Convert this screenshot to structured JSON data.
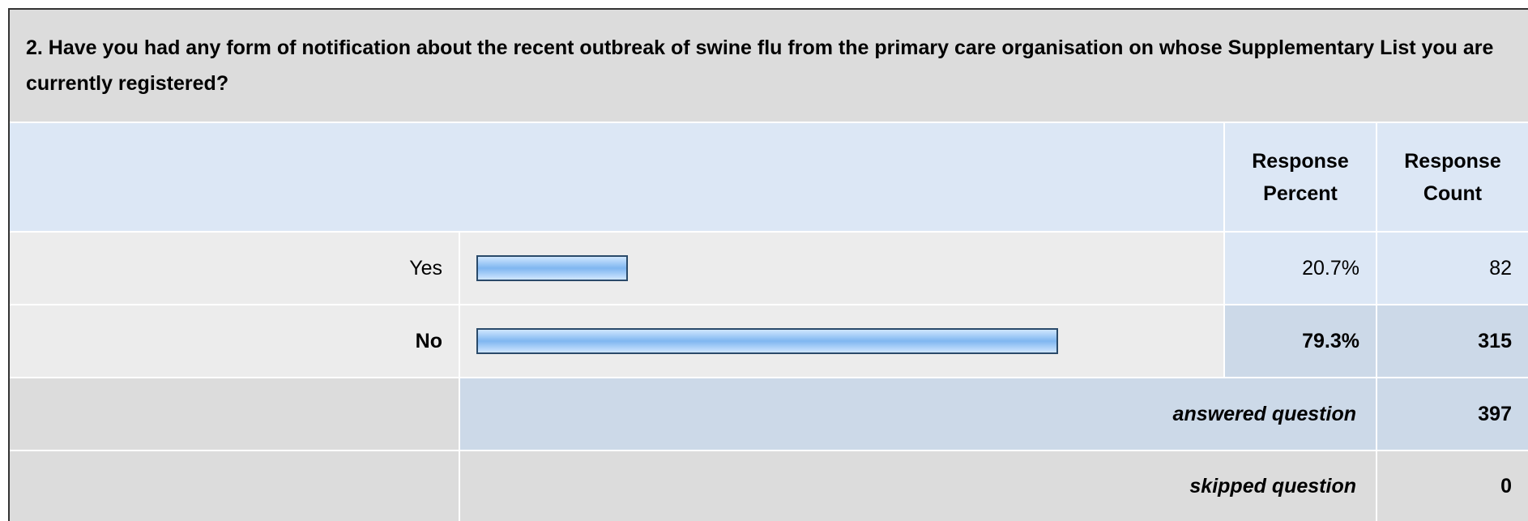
{
  "question": "2. Have you had any form of notification about the recent outbreak of swine flu from the primary care organisation on whose Supplementary List you are currently registered?",
  "table": {
    "headers": [
      "Response Percent",
      "Response Count"
    ],
    "rows": [
      {
        "label": "Yes",
        "percent": 20.7,
        "percent_label": "20.7%",
        "count": 82
      },
      {
        "label": "No",
        "percent": 79.3,
        "percent_label": "79.3%",
        "count": 315
      }
    ],
    "answered": {
      "label": "answered question",
      "value": 397
    },
    "skipped": {
      "label": "skipped question",
      "value": 0
    }
  }
}
